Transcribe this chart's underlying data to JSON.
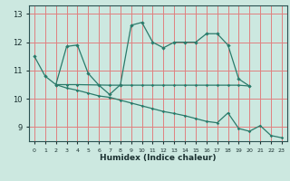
{
  "xlabel": "Humidex (Indice chaleur)",
  "background_color": "#cce8e0",
  "grid_color": "#e08080",
  "line_color": "#2a7a6a",
  "xlim": [
    -0.5,
    23.5
  ],
  "ylim": [
    8.5,
    13.3
  ],
  "xticks": [
    0,
    1,
    2,
    3,
    4,
    5,
    6,
    7,
    8,
    9,
    10,
    11,
    12,
    13,
    14,
    15,
    16,
    17,
    18,
    19,
    20,
    21,
    22,
    23
  ],
  "yticks": [
    9,
    10,
    11,
    12,
    13
  ],
  "line1_x": [
    0,
    1,
    2,
    3,
    4,
    5,
    6,
    7,
    8,
    9,
    10,
    11,
    12,
    13,
    14,
    15,
    16,
    17,
    18,
    19,
    20
  ],
  "line1_y": [
    11.5,
    10.8,
    10.5,
    11.85,
    11.9,
    10.9,
    10.48,
    10.15,
    10.5,
    12.6,
    12.7,
    12.0,
    11.8,
    12.0,
    12.0,
    12.0,
    12.3,
    12.3,
    11.9,
    10.7,
    10.45
  ],
  "line2_x": [
    2,
    3,
    4,
    7,
    8,
    9,
    10,
    11,
    12,
    13,
    14,
    15,
    16,
    17,
    18,
    19,
    20
  ],
  "line2_y": [
    10.5,
    10.5,
    10.5,
    10.48,
    10.48,
    10.48,
    10.48,
    10.48,
    10.48,
    10.48,
    10.48,
    10.48,
    10.48,
    10.48,
    10.48,
    10.48,
    10.45
  ],
  "line3_x": [
    2,
    3,
    4,
    5,
    6,
    7,
    8,
    9,
    10,
    11,
    12,
    13,
    14,
    15,
    16,
    17,
    18,
    19,
    20,
    21,
    22,
    23
  ],
  "line3_y": [
    10.5,
    10.38,
    10.3,
    10.2,
    10.1,
    10.05,
    9.95,
    9.85,
    9.75,
    9.65,
    9.55,
    9.48,
    9.4,
    9.3,
    9.2,
    9.15,
    9.5,
    8.95,
    8.85,
    9.05,
    8.7,
    8.62
  ]
}
